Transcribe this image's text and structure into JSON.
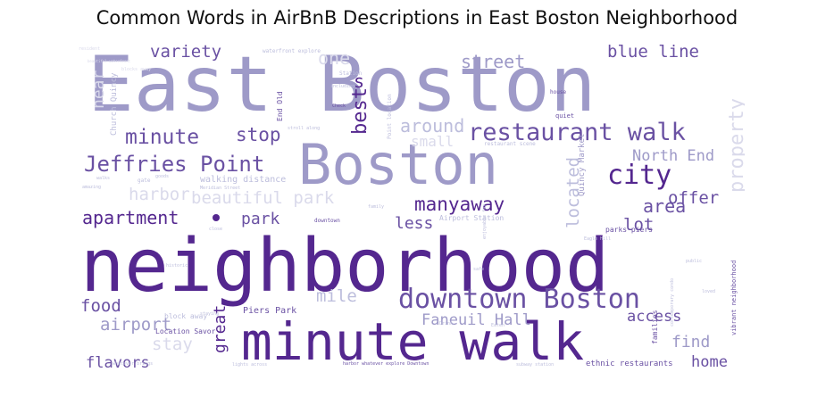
{
  "title": "Common Words in AirBnB Descriptions in East Boston Neighborhood",
  "palette": {
    "dark": "#54278f",
    "mid": "#6a51a3",
    "light": "#9e9ac8",
    "pale": "#bcbddc",
    "faint": "#dadaeb"
  },
  "words": [
    {
      "text": "East Boston",
      "color": "light"
    },
    {
      "text": "Boston",
      "color": "light"
    },
    {
      "text": "neighborhood",
      "color": "dark"
    },
    {
      "text": "minute walk",
      "color": "dark"
    },
    {
      "text": "downtown Boston",
      "color": "mid"
    },
    {
      "text": "restaurant walk",
      "color": "mid"
    },
    {
      "text": "Jeffries Point",
      "color": "mid"
    },
    {
      "text": "city",
      "color": "dark"
    },
    {
      "text": "minute",
      "color": "mid"
    },
    {
      "text": "stop",
      "color": "mid"
    },
    {
      "text": "street",
      "color": "light"
    },
    {
      "text": "blue line",
      "color": "mid"
    },
    {
      "text": "variety",
      "color": "mid"
    },
    {
      "text": "best",
      "color": "dark"
    },
    {
      "text": "s",
      "color": "dark"
    },
    {
      "text": "around",
      "color": "pale"
    },
    {
      "text": "small",
      "color": "faint"
    },
    {
      "text": "harbor",
      "color": "faint"
    },
    {
      "text": "beautiful park",
      "color": "faint"
    },
    {
      "text": "apartment",
      "color": "dark"
    },
    {
      "text": "park",
      "color": "mid"
    },
    {
      "text": "manyaway",
      "color": "dark"
    },
    {
      "text": "less",
      "color": "mid"
    },
    {
      "text": "located",
      "color": "pale"
    },
    {
      "text": "area",
      "color": "mid"
    },
    {
      "text": "offer",
      "color": "mid"
    },
    {
      "text": "lot",
      "color": "mid"
    },
    {
      "text": "North End",
      "color": "light"
    },
    {
      "text": "property",
      "color": "faint"
    },
    {
      "text": "one",
      "color": "faint"
    },
    {
      "text": "near",
      "color": "faint"
    },
    {
      "text": "mile",
      "color": "pale"
    },
    {
      "text": "great",
      "color": "dark"
    },
    {
      "text": "food",
      "color": "mid"
    },
    {
      "text": "airport",
      "color": "light"
    },
    {
      "text": "stay",
      "color": "faint"
    },
    {
      "text": "flavors",
      "color": "mid"
    },
    {
      "text": "Faneuil Hall",
      "color": "light"
    },
    {
      "text": "access",
      "color": "mid"
    },
    {
      "text": "find",
      "color": "light"
    },
    {
      "text": "home",
      "color": "mid"
    },
    {
      "text": "Piers Park",
      "color": "mid"
    },
    {
      "text": "Location Savor",
      "color": "mid"
    },
    {
      "text": "Church Quincy",
      "color": "pale"
    },
    {
      "text": "walking distance",
      "color": "pale"
    },
    {
      "text": "Quincy Market",
      "color": "light"
    },
    {
      "text": "Airport Station",
      "color": "pale"
    },
    {
      "text": "parks piers",
      "color": "mid"
    },
    {
      "text": "ethnic restaurants",
      "color": "mid"
    },
    {
      "text": "block away",
      "color": "pale"
    },
    {
      "text": "downtown",
      "color": "mid"
    },
    {
      "text": "End Old",
      "color": "mid"
    },
    {
      "text": "waterfront explore",
      "color": "pale"
    },
    {
      "text": "Point location",
      "color": "pale"
    },
    {
      "text": "restaurant scene",
      "color": "pale"
    },
    {
      "text": "quiet",
      "color": "mid"
    },
    {
      "text": "house",
      "color": "mid"
    },
    {
      "text": "Station",
      "color": "pale"
    },
    {
      "text": "including",
      "color": "pale"
    },
    {
      "text": "stroll along",
      "color": "pale"
    },
    {
      "text": "Check",
      "color": "mid"
    },
    {
      "text": "lights across",
      "color": "pale"
    },
    {
      "text": "harbor whatever explore Downtown",
      "color": "mid"
    },
    {
      "text": "subway station",
      "color": "pale"
    },
    {
      "text": "whatever brings",
      "color": "pale"
    },
    {
      "text": "families",
      "color": "mid"
    },
    {
      "text": "vibrant neighborhood",
      "color": "mid"
    },
    {
      "text": "Eagle Hill",
      "color": "pale"
    },
    {
      "text": "goods",
      "color": "pale"
    },
    {
      "text": "walks",
      "color": "pale"
    },
    {
      "text": "amazing",
      "color": "pale"
    },
    {
      "text": "gate",
      "color": "pale"
    },
    {
      "text": "close",
      "color": "pale"
    },
    {
      "text": "historic",
      "color": "pale"
    },
    {
      "text": "staying",
      "color": "pale"
    },
    {
      "text": "safe",
      "color": "pale"
    },
    {
      "text": "Drink",
      "color": "pale"
    },
    {
      "text": "family",
      "color": "pale"
    },
    {
      "text": "loved",
      "color": "pale"
    },
    {
      "text": "resident",
      "color": "faint"
    },
    {
      "text": "blocks away",
      "color": "faint"
    },
    {
      "text": "beautiful waterfront",
      "color": "faint"
    },
    {
      "text": "enjoyable far",
      "color": "pale"
    },
    {
      "text": "contemporary condo",
      "color": "pale"
    },
    {
      "text": "Meridian Street",
      "color": "pale"
    },
    {
      "text": "public",
      "color": "pale"
    },
    {
      "text": "Eaten",
      "color": "pale"
    }
  ]
}
